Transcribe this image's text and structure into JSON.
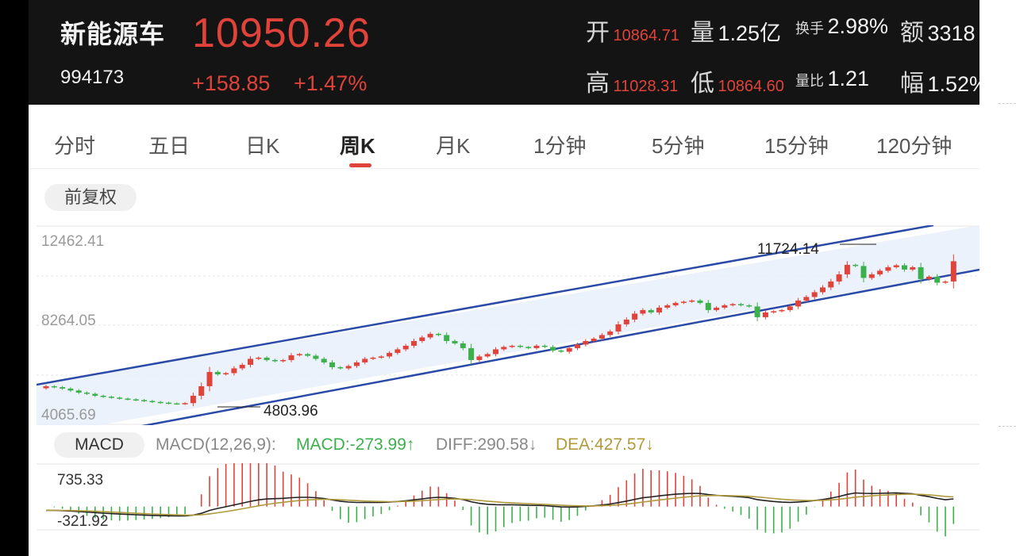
{
  "header": {
    "name": "新能源车",
    "code": "994173",
    "price": "10950.26",
    "change": "+158.85",
    "change_pct": "+1.47%",
    "open_label": "开",
    "open_value": "10864.71",
    "volume_label": "量",
    "volume_value": "1.25亿",
    "turnover_label": "换手",
    "turnover_value": "2.98%",
    "amount_label": "额",
    "amount_value": "3318",
    "high_label": "高",
    "high_value": "11028.31",
    "low_label": "低",
    "low_value": "10864.60",
    "volratio_label": "量比",
    "volratio_value": "1.21",
    "range_label": "幅",
    "range_value": "1.52%"
  },
  "tabs": [
    {
      "label": "分时"
    },
    {
      "label": "五日"
    },
    {
      "label": "日K"
    },
    {
      "label": "周K"
    },
    {
      "label": "月K"
    },
    {
      "label": "1分钟"
    },
    {
      "label": "5分钟"
    },
    {
      "label": "15分钟"
    },
    {
      "label": "120分钟"
    }
  ],
  "active_tab": "周K",
  "adjust_label": "前复权",
  "price_axis": {
    "top": "12462.41",
    "mid": "8264.05",
    "bottom": "4065.69"
  },
  "annotations": {
    "high": "11724.14",
    "low": "4803.96"
  },
  "macd": {
    "pill_label": "MACD",
    "params": "MACD(12,26,9):",
    "macd_value": "MACD:-273.99↑",
    "diff_value": "DIFF:290.58↓",
    "dea_value": "DEA:427.57↓",
    "axis_top": "735.33",
    "axis_bottom": "-321.92"
  },
  "colors": {
    "up": "#e0433a",
    "down": "#3cb04a",
    "channel": "#2a4aa8",
    "diff": "#222222",
    "dea": "#b09a3c"
  },
  "chart_data": {
    "type": "candlestick",
    "interval": "weekly",
    "ylim": [
      4065.69,
      12462.41
    ],
    "close": [
      5700,
      5660,
      5600,
      5520,
      5430,
      5380,
      5300,
      5260,
      5220,
      5180,
      5150,
      5120,
      5080,
      5040,
      5010,
      4980,
      4960,
      4990,
      5300,
      5700,
      6300,
      6200,
      6250,
      6450,
      6600,
      6850,
      6900,
      6800,
      6750,
      6800,
      7000,
      7050,
      6980,
      6850,
      6700,
      6500,
      6450,
      6550,
      6700,
      6850,
      6900,
      6950,
      7100,
      7250,
      7400,
      7600,
      7750,
      7900,
      7850,
      7600,
      7500,
      7300,
      6800,
      6950,
      7050,
      7250,
      7350,
      7400,
      7350,
      7300,
      7400,
      7350,
      7200,
      7150,
      7300,
      7450,
      7600,
      7700,
      7850,
      8000,
      8300,
      8500,
      8750,
      8900,
      8800,
      9000,
      9100,
      9200,
      9250,
      9300,
      9200,
      8900,
      9000,
      9100,
      9150,
      9100,
      9050,
      8600,
      8800,
      8850,
      8900,
      9050,
      9300,
      9450,
      9650,
      9850,
      10100,
      10400,
      10800,
      10750,
      10250,
      10400,
      10550,
      10700,
      10780,
      10600,
      10700,
      10200,
      10300,
      10050,
      10100,
      10950
    ],
    "macd_ylim": [
      -321.92,
      735.33
    ]
  }
}
